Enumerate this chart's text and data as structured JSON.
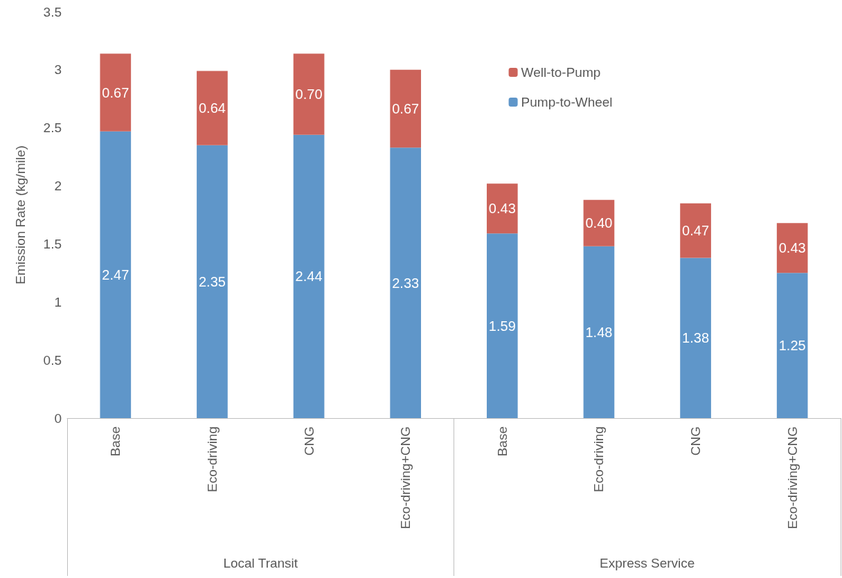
{
  "chart_data": {
    "type": "bar",
    "stacked": true,
    "ylabel": "Emission Rate (kg/mile)",
    "categories": [
      "Base",
      "Eco-driving",
      "CNG",
      "Eco-driving+CNG",
      "Base",
      "Eco-driving",
      "CNG",
      "Eco-driving+CNG"
    ],
    "series": [
      {
        "name": "Pump-to-Wheel",
        "color": "#5f96c9",
        "values": [
          2.47,
          2.35,
          2.44,
          2.33,
          1.59,
          1.48,
          1.38,
          1.25
        ],
        "value_labels": [
          "2.47",
          "2.35",
          "2.44",
          "2.33",
          "1.59",
          "1.48",
          "1.38",
          "1.25"
        ]
      },
      {
        "name": "Well-to-Pump",
        "color": "#cc635a",
        "values": [
          0.67,
          0.64,
          0.7,
          0.67,
          0.43,
          0.4,
          0.47,
          0.43
        ],
        "value_labels": [
          "0.67",
          "0.64",
          "0.70",
          "0.67",
          "0.43",
          "0.40",
          "0.47",
          "0.43"
        ]
      }
    ],
    "annotations": [
      "Local Transit",
      "Express Service"
    ],
    "ylim": [
      0,
      3.5
    ],
    "yticks": [
      0,
      0.5,
      1,
      1.5,
      2,
      2.5,
      3,
      3.5
    ],
    "grid": false,
    "legend": "top right"
  }
}
